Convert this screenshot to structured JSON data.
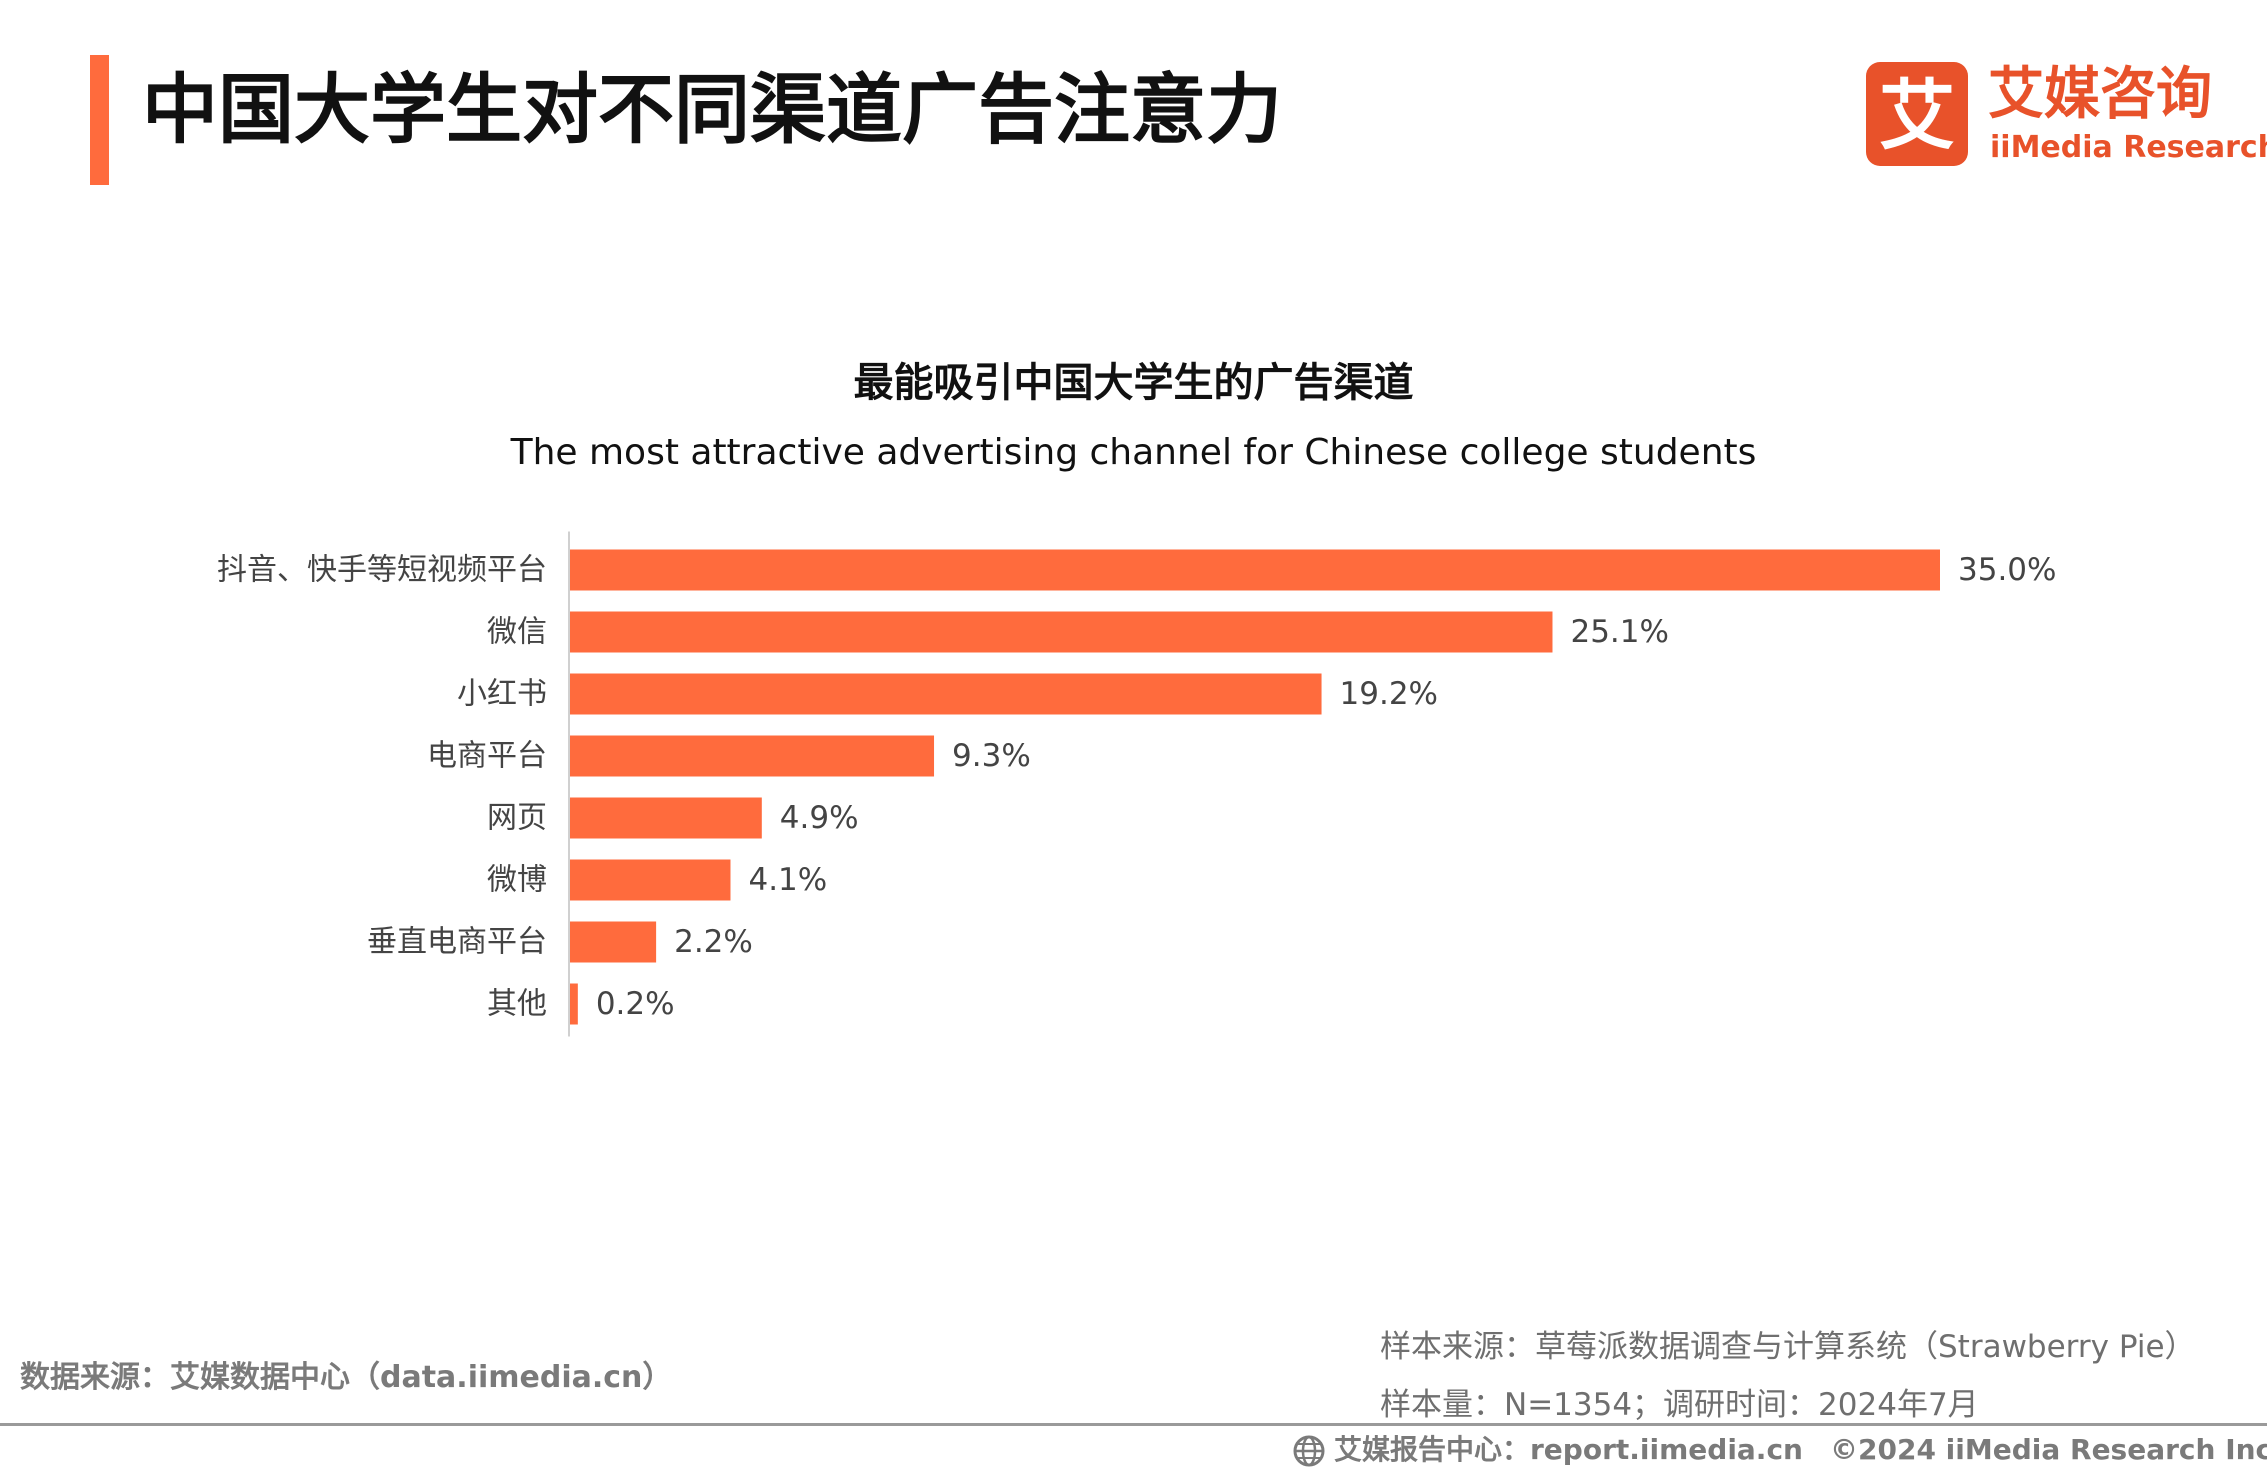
{
  "header": {
    "title": "中国大学生对不同渠道广告注意力",
    "accent_color": "#ff6b3d"
  },
  "logo": {
    "glyph": "艾",
    "name_cn": "艾媒咨询",
    "name_en": "iiMedia Research",
    "color": "#e8522a"
  },
  "chart_data": {
    "type": "bar",
    "orientation": "horizontal",
    "title": "最能吸引中国大学生的广告渠道",
    "subtitle": "The most attractive advertising channel for Chinese college students",
    "categories": [
      "抖音、快手等短视频平台",
      "微信",
      "小红书",
      "电商平台",
      "网页",
      "微博",
      "垂直电商平台",
      "其他"
    ],
    "values": [
      35.0,
      25.1,
      19.2,
      9.3,
      4.9,
      4.1,
      2.2,
      0.2
    ],
    "value_labels": [
      "35.0%",
      "25.1%",
      "19.2%",
      "9.3%",
      "4.9%",
      "4.1%",
      "2.2%",
      "0.2%"
    ],
    "unit": "%",
    "xlim": [
      0,
      35.0
    ],
    "bar_color": "#ff6b3d",
    "grid": false,
    "legend": "none"
  },
  "footer": {
    "data_source": "数据来源：艾媒数据中心（data.iimedia.cn）",
    "sample_source": "样本来源：草莓派数据调查与计算系统（Strawberry Pie）",
    "sample_size": "样本量：N=1354；调研时间：2024年7月",
    "report_center": "艾媒报告中心：report.iimedia.cn",
    "copyright": "©2024  iiMedia Research  Inc"
  }
}
